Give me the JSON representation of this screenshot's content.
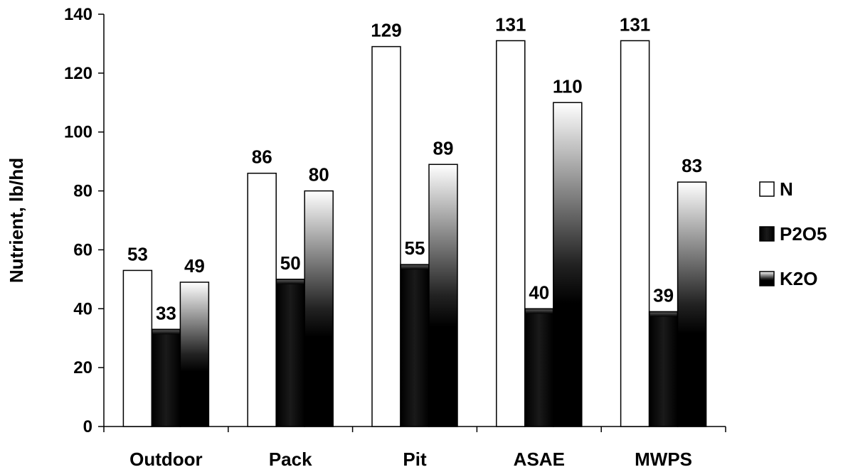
{
  "chart_data": {
    "type": "bar",
    "title": "",
    "xlabel": "",
    "ylabel": "Nutrient, lb/hd",
    "ylim": [
      0,
      140
    ],
    "yticks": [
      0,
      20,
      40,
      60,
      80,
      100,
      120,
      140
    ],
    "grid": false,
    "legend_position": "right",
    "categories": [
      "Outdoor",
      "Pack",
      "Pit",
      "ASAE",
      "MWPS"
    ],
    "series": [
      {
        "name": "N",
        "values": [
          53,
          86,
          129,
          131,
          131
        ],
        "labels": [
          "53",
          "86",
          "129",
          "131",
          "131"
        ],
        "fill": "white"
      },
      {
        "name": "P2O5",
        "values": [
          33,
          50,
          55,
          40,
          39
        ],
        "labels": [
          "33",
          "50",
          "55",
          "40",
          "39"
        ],
        "fill": "black-bevel"
      },
      {
        "name": "K2O",
        "values": [
          49,
          80,
          89,
          110,
          83
        ],
        "labels": [
          "49",
          "80",
          "89",
          "110",
          "83"
        ],
        "fill": "black-to-white-gradient"
      }
    ],
    "colors": {
      "N": "#ffffff",
      "P2O5": "#000000",
      "K2O": "#000000",
      "outline": "#000000"
    }
  }
}
